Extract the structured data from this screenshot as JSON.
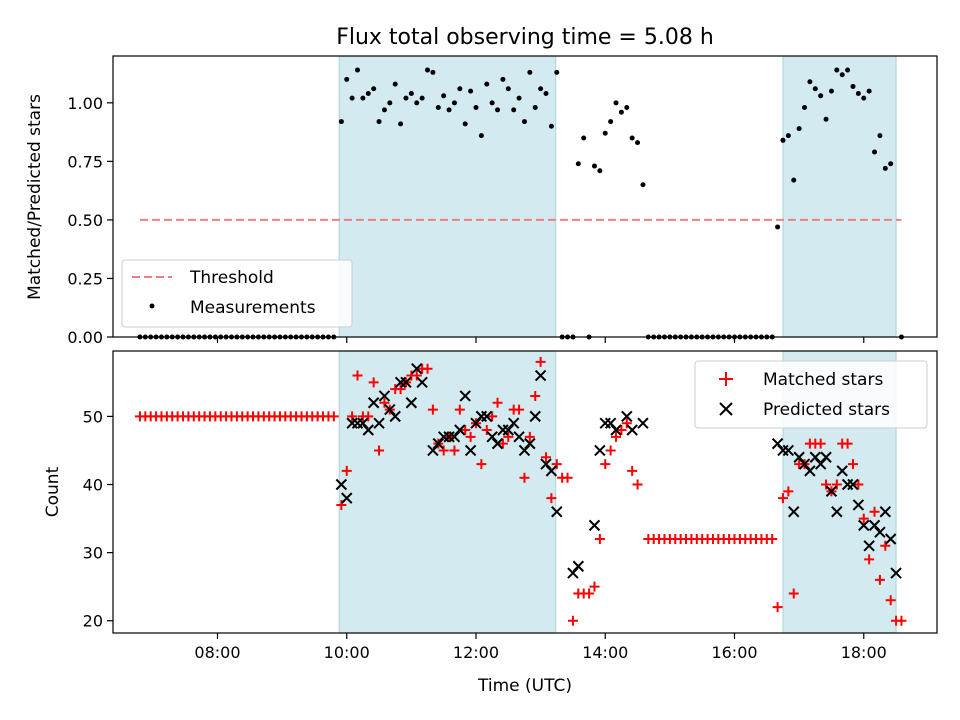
{
  "figure": {
    "title": "Flux total observing time = 5.08 h"
  },
  "chart_data": [
    {
      "type": "scatter",
      "panel": "top",
      "ylabel": "Matched/Predicted stars",
      "xlim": [
        "06:23",
        "19:08"
      ],
      "ylim": [
        0,
        1.2
      ],
      "yticks": [
        "0.00",
        "0.25",
        "0.50",
        "0.75",
        "1.00"
      ],
      "grid": false,
      "legend_position": "lower-left",
      "shaded_intervals": [
        [
          "09:53",
          "13:14"
        ],
        [
          "16:45",
          "18:30"
        ]
      ],
      "shade_color": "#d2eaf0",
      "threshold": {
        "name": "Threshold",
        "y": 0.5,
        "x_range": [
          "06:48",
          "18:35"
        ],
        "color": "#f08080"
      },
      "series": [
        {
          "name": "Measurements",
          "color": "#000000",
          "points": [
            [
              "09:55",
              0.92
            ],
            [
              "10:00",
              1.1
            ],
            [
              "10:05",
              1.02
            ],
            [
              "10:10",
              1.14
            ],
            [
              "10:15",
              1.02
            ],
            [
              "10:20",
              1.04
            ],
            [
              "10:25",
              1.06
            ],
            [
              "10:30",
              0.92
            ],
            [
              "10:35",
              0.97
            ],
            [
              "10:40",
              1.0
            ],
            [
              "10:45",
              1.08
            ],
            [
              "10:50",
              0.91
            ],
            [
              "10:55",
              1.02
            ],
            [
              "11:00",
              1.04
            ],
            [
              "11:05",
              1.0
            ],
            [
              "11:10",
              1.02
            ],
            [
              "11:15",
              1.14
            ],
            [
              "11:20",
              1.13
            ],
            [
              "11:25",
              0.98
            ],
            [
              "11:30",
              1.03
            ],
            [
              "11:35",
              0.97
            ],
            [
              "11:40",
              1.0
            ],
            [
              "11:45",
              1.06
            ],
            [
              "11:50",
              0.91
            ],
            [
              "11:55",
              1.05
            ],
            [
              "12:00",
              0.98
            ],
            [
              "12:05",
              0.86
            ],
            [
              "12:10",
              1.08
            ],
            [
              "12:15",
              1.0
            ],
            [
              "12:20",
              0.97
            ],
            [
              "12:25",
              1.1
            ],
            [
              "12:30",
              1.06
            ],
            [
              "12:35",
              0.97
            ],
            [
              "12:40",
              1.02
            ],
            [
              "12:45",
              0.92
            ],
            [
              "12:50",
              1.13
            ],
            [
              "12:55",
              0.98
            ],
            [
              "13:00",
              1.06
            ],
            [
              "13:05",
              1.04
            ],
            [
              "13:10",
              0.9
            ],
            [
              "13:15",
              1.13
            ],
            [
              "13:35",
              0.74
            ],
            [
              "13:40",
              0.85
            ],
            [
              "13:50",
              0.73
            ],
            [
              "13:55",
              0.71
            ],
            [
              "14:00",
              0.87
            ],
            [
              "14:05",
              0.92
            ],
            [
              "14:10",
              1.0
            ],
            [
              "14:15",
              0.96
            ],
            [
              "14:20",
              0.98
            ],
            [
              "14:25",
              0.85
            ],
            [
              "14:30",
              0.83
            ],
            [
              "14:35",
              0.65
            ],
            [
              "16:40",
              0.47
            ],
            [
              "16:45",
              0.84
            ],
            [
              "16:50",
              0.86
            ],
            [
              "16:55",
              0.67
            ],
            [
              "17:00",
              0.89
            ],
            [
              "17:05",
              0.98
            ],
            [
              "17:10",
              1.09
            ],
            [
              "17:15",
              1.06
            ],
            [
              "17:20",
              1.03
            ],
            [
              "17:25",
              0.93
            ],
            [
              "17:30",
              1.05
            ],
            [
              "17:35",
              1.14
            ],
            [
              "17:40",
              1.12
            ],
            [
              "17:45",
              1.14
            ],
            [
              "17:50",
              1.07
            ],
            [
              "17:55",
              1.04
            ],
            [
              "18:00",
              1.02
            ],
            [
              "18:05",
              1.05
            ],
            [
              "18:10",
              0.79
            ],
            [
              "18:15",
              0.86
            ],
            [
              "18:20",
              0.72
            ],
            [
              "18:25",
              0.74
            ]
          ],
          "zero_ranges": [
            {
              "from": "06:48",
              "to": "09:50",
              "step_min": 5
            },
            {
              "from": "13:20",
              "to": "13:30",
              "step_min": 5
            },
            {
              "from": "13:45",
              "to": "13:45",
              "step_min": 5
            },
            {
              "from": "14:40",
              "to": "16:35",
              "step_min": 5
            },
            {
              "from": "18:35",
              "to": "18:35",
              "step_min": 5
            }
          ]
        }
      ]
    },
    {
      "type": "scatter",
      "panel": "bottom",
      "xlabel": "Time (UTC)",
      "ylabel": "Count",
      "xlim": [
        "06:23",
        "19:08"
      ],
      "ylim": [
        18.2,
        59.6
      ],
      "yticks": [
        "20",
        "30",
        "40",
        "50"
      ],
      "xticks": [
        "08:00",
        "10:00",
        "12:00",
        "14:00",
        "16:00",
        "18:00"
      ],
      "grid": false,
      "legend_position": "upper-right",
      "shaded_intervals": [
        [
          "09:53",
          "13:14"
        ],
        [
          "16:45",
          "18:30"
        ]
      ],
      "series": [
        {
          "name": "Matched stars",
          "marker": "plus",
          "color": "#ff0000",
          "constant_ranges": [
            {
              "from": "06:48",
              "to": "09:50",
              "step_min": 5,
              "value": 50
            },
            {
              "from": "14:40",
              "to": "16:35",
              "step_min": 5,
              "value": 32
            }
          ],
          "points": [
            [
              "09:55",
              37
            ],
            [
              "10:00",
              42
            ],
            [
              "10:05",
              50
            ],
            [
              "10:10",
              56
            ],
            [
              "10:15",
              50
            ],
            [
              "10:20",
              50
            ],
            [
              "10:25",
              55
            ],
            [
              "10:30",
              45
            ],
            [
              "10:35",
              52
            ],
            [
              "10:40",
              51
            ],
            [
              "10:45",
              54
            ],
            [
              "10:50",
              54
            ],
            [
              "10:55",
              55
            ],
            [
              "11:00",
              56
            ],
            [
              "11:05",
              56
            ],
            [
              "11:10",
              57
            ],
            [
              "11:15",
              57
            ],
            [
              "11:20",
              51
            ],
            [
              "11:25",
              46
            ],
            [
              "11:30",
              45
            ],
            [
              "11:35",
              47
            ],
            [
              "11:40",
              45
            ],
            [
              "11:45",
              51
            ],
            [
              "11:50",
              48
            ],
            [
              "11:55",
              47
            ],
            [
              "12:00",
              49
            ],
            [
              "12:05",
              43
            ],
            [
              "12:10",
              48
            ],
            [
              "12:15",
              50
            ],
            [
              "12:20",
              52
            ],
            [
              "12:25",
              46
            ],
            [
              "12:30",
              47
            ],
            [
              "12:35",
              51
            ],
            [
              "12:40",
              51
            ],
            [
              "12:45",
              41
            ],
            [
              "12:50",
              47
            ],
            [
              "12:55",
              53
            ],
            [
              "13:00",
              58
            ],
            [
              "13:05",
              44
            ],
            [
              "13:10",
              38
            ],
            [
              "13:15",
              43
            ],
            [
              "13:20",
              41
            ],
            [
              "13:25",
              41
            ],
            [
              "13:30",
              20
            ],
            [
              "13:35",
              24
            ],
            [
              "13:40",
              24
            ],
            [
              "13:45",
              24
            ],
            [
              "13:50",
              25
            ],
            [
              "13:55",
              32
            ],
            [
              "14:00",
              43
            ],
            [
              "14:05",
              45
            ],
            [
              "14:10",
              47
            ],
            [
              "14:15",
              48
            ],
            [
              "14:20",
              49
            ],
            [
              "14:25",
              42
            ],
            [
              "14:30",
              40
            ],
            [
              "16:40",
              22
            ],
            [
              "16:45",
              38
            ],
            [
              "16:50",
              39
            ],
            [
              "16:55",
              24
            ],
            [
              "17:00",
              43
            ],
            [
              "17:05",
              43
            ],
            [
              "17:10",
              46
            ],
            [
              "17:15",
              46
            ],
            [
              "17:20",
              46
            ],
            [
              "17:25",
              40
            ],
            [
              "17:30",
              39
            ],
            [
              "17:35",
              40
            ],
            [
              "17:40",
              46
            ],
            [
              "17:45",
              46
            ],
            [
              "17:50",
              43
            ],
            [
              "17:55",
              40
            ],
            [
              "18:00",
              35
            ],
            [
              "18:05",
              29
            ],
            [
              "18:10",
              36
            ],
            [
              "18:15",
              26
            ],
            [
              "18:20",
              31
            ],
            [
              "18:25",
              23
            ],
            [
              "18:30",
              20
            ],
            [
              "18:35",
              20
            ]
          ]
        },
        {
          "name": "Predicted stars",
          "marker": "x",
          "color": "#000000",
          "points": [
            [
              "09:55",
              40
            ],
            [
              "10:00",
              38
            ],
            [
              "10:05",
              49
            ],
            [
              "10:10",
              49
            ],
            [
              "10:15",
              49
            ],
            [
              "10:20",
              48
            ],
            [
              "10:25",
              52
            ],
            [
              "10:30",
              49
            ],
            [
              "10:35",
              53
            ],
            [
              "10:40",
              51
            ],
            [
              "10:45",
              50
            ],
            [
              "10:50",
              55
            ],
            [
              "10:55",
              55
            ],
            [
              "11:00",
              52
            ],
            [
              "11:05",
              57
            ],
            [
              "11:10",
              55
            ],
            [
              "11:20",
              45
            ],
            [
              "11:25",
              46
            ],
            [
              "11:30",
              47
            ],
            [
              "11:35",
              47
            ],
            [
              "11:40",
              47
            ],
            [
              "11:45",
              48
            ],
            [
              "11:50",
              53
            ],
            [
              "11:55",
              45
            ],
            [
              "12:00",
              49
            ],
            [
              "12:05",
              50
            ],
            [
              "12:10",
              50
            ],
            [
              "12:15",
              47
            ],
            [
              "12:20",
              46
            ],
            [
              "12:25",
              48
            ],
            [
              "12:30",
              48
            ],
            [
              "12:35",
              49
            ],
            [
              "12:40",
              47
            ],
            [
              "12:45",
              45
            ],
            [
              "12:50",
              46
            ],
            [
              "12:55",
              50
            ],
            [
              "13:00",
              56
            ],
            [
              "13:05",
              43
            ],
            [
              "13:10",
              42
            ],
            [
              "13:15",
              36
            ],
            [
              "13:30",
              27
            ],
            [
              "13:35",
              28
            ],
            [
              "13:50",
              34
            ],
            [
              "13:55",
              45
            ],
            [
              "14:00",
              49
            ],
            [
              "14:05",
              49
            ],
            [
              "14:10",
              48
            ],
            [
              "14:20",
              50
            ],
            [
              "14:25",
              48
            ],
            [
              "14:35",
              49
            ],
            [
              "16:40",
              46
            ],
            [
              "16:45",
              45
            ],
            [
              "16:50",
              45
            ],
            [
              "16:55",
              36
            ],
            [
              "17:00",
              44
            ],
            [
              "17:05",
              43
            ],
            [
              "17:10",
              42
            ],
            [
              "17:15",
              44
            ],
            [
              "17:20",
              43
            ],
            [
              "17:25",
              44
            ],
            [
              "17:30",
              39
            ],
            [
              "17:35",
              36
            ],
            [
              "17:40",
              42
            ],
            [
              "17:45",
              40
            ],
            [
              "17:50",
              40
            ],
            [
              "17:55",
              37
            ],
            [
              "18:00",
              34
            ],
            [
              "18:05",
              31
            ],
            [
              "18:10",
              34
            ],
            [
              "18:15",
              33
            ],
            [
              "18:20",
              36
            ],
            [
              "18:25",
              32
            ],
            [
              "18:30",
              27
            ]
          ]
        }
      ]
    }
  ]
}
